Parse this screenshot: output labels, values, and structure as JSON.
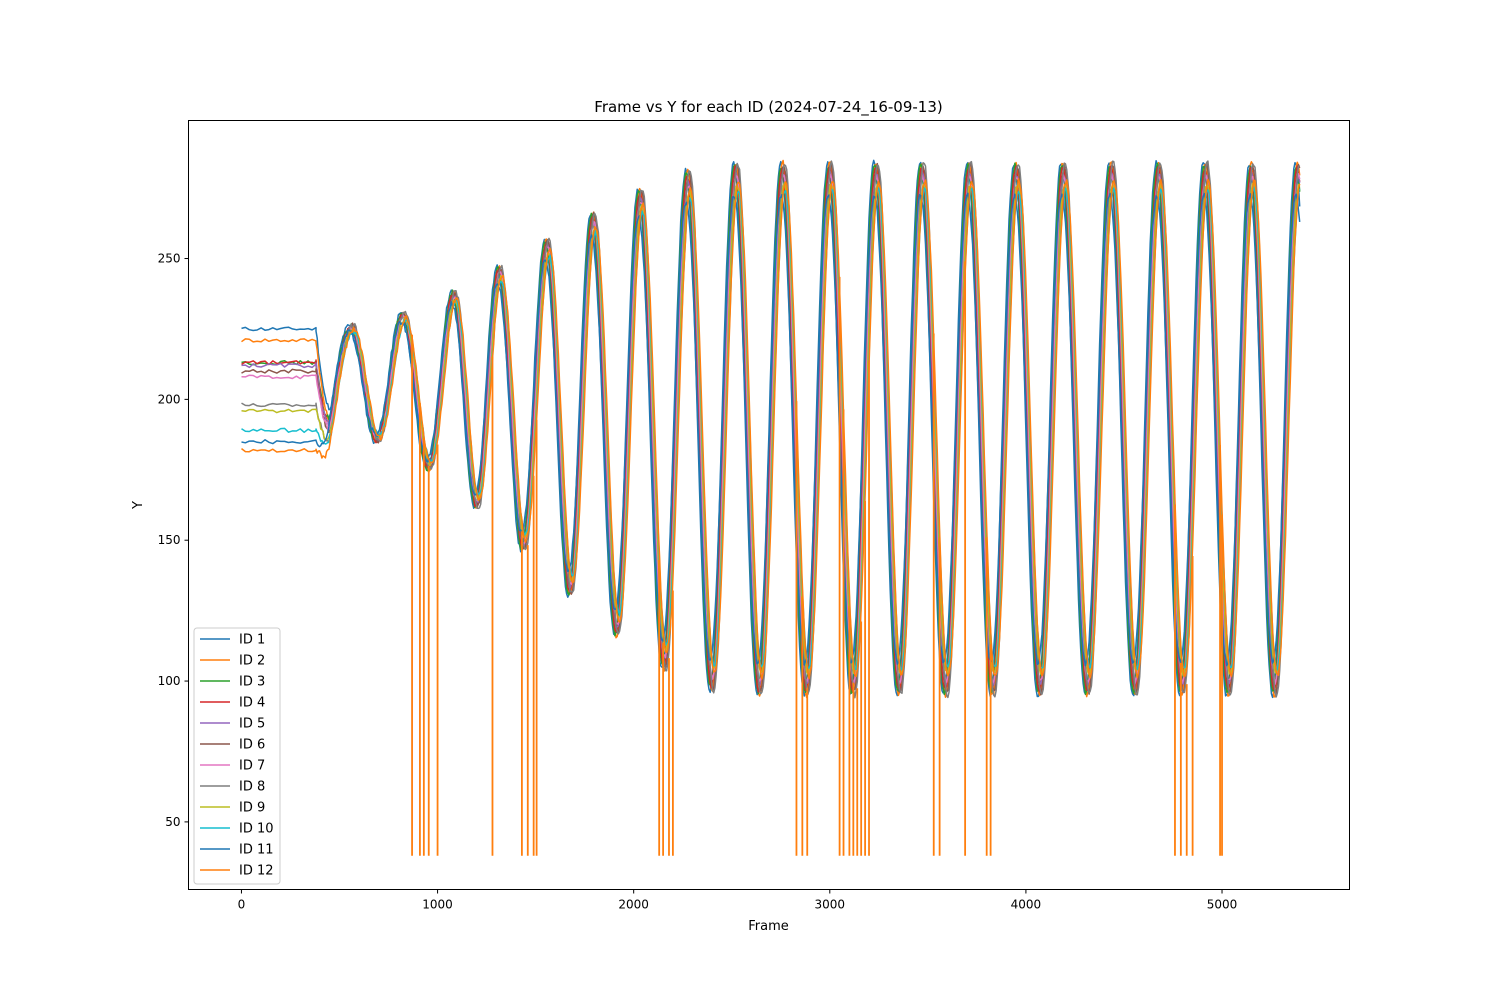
{
  "chart_data": {
    "type": "line",
    "title": "Frame vs Y for each ID (2024-07-24_16-09-13)",
    "xlabel": "Frame",
    "ylabel": "Y",
    "xlim": [
      -270,
      5650
    ],
    "ylim": [
      26,
      299
    ],
    "x_ticks": [
      0,
      1000,
      2000,
      3000,
      4000,
      5000
    ],
    "y_ticks": [
      50,
      100,
      150,
      200,
      250
    ],
    "grid": false,
    "legend_location": "lower-left",
    "oscillation": {
      "start_frame": 380,
      "end_frame": 5400,
      "peak_frames": [
        548,
        812,
        1070,
        1302,
        1546,
        1781,
        2022,
        2265,
        2510,
        2750,
        2990,
        3225,
        3460,
        3700,
        3940,
        4180,
        4425,
        4665,
        4905,
        5140
      ]
    },
    "series": [
      {
        "name": "ID 1",
        "color": "#1f77b4",
        "initial_y": 225,
        "phase": 0,
        "scale": 1.0
      },
      {
        "name": "ID 2",
        "color": "#ff7f0e",
        "initial_y": 221,
        "phase": 10,
        "scale": 1.0
      },
      {
        "name": "ID 3",
        "color": "#2ca02c",
        "initial_y": 213,
        "phase": 4,
        "scale": 0.99
      },
      {
        "name": "ID 4",
        "color": "#d62728",
        "initial_y": 213,
        "phase": 8,
        "scale": 0.98
      },
      {
        "name": "ID 5",
        "color": "#9467bd",
        "initial_y": 212,
        "phase": 12,
        "scale": 0.96
      },
      {
        "name": "ID 6",
        "color": "#8c564b",
        "initial_y": 210,
        "phase": 16,
        "scale": 0.99
      },
      {
        "name": "ID 7",
        "color": "#e377c2",
        "initial_y": 208,
        "phase": 14,
        "scale": 0.95
      },
      {
        "name": "ID 8",
        "color": "#7f7f7f",
        "initial_y": 198,
        "phase": 20,
        "scale": 1.0
      },
      {
        "name": "ID 9",
        "color": "#bcbd22",
        "initial_y": 196,
        "phase": 18,
        "scale": 0.92
      },
      {
        "name": "ID 10",
        "color": "#17becf",
        "initial_y": 189,
        "phase": 22,
        "scale": 0.9
      },
      {
        "name": "ID 11",
        "color": "#1f77b4",
        "initial_y": 185,
        "phase": 2,
        "scale": 0.88
      },
      {
        "name": "ID 12",
        "color": "#ff7f0e",
        "initial_y": 182,
        "phase": 24,
        "scale": 0.93,
        "dropout_frames": [
          870,
          910,
          930,
          955,
          1000,
          1280,
          1430,
          1460,
          1490,
          1505,
          2130,
          2150,
          2180,
          2200,
          2830,
          2860,
          2885,
          3050,
          3070,
          3100,
          3120,
          3140,
          3160,
          3180,
          3200,
          3530,
          3560,
          3690,
          3800,
          3820,
          4760,
          4790,
          4820,
          4850,
          4990,
          5000
        ],
        "dropout_y": 38
      }
    ]
  }
}
